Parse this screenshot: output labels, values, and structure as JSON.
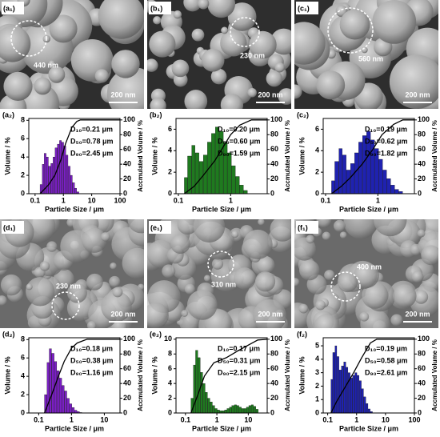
{
  "images": [
    {
      "label": "(a₁)",
      "size_label": "440 nm",
      "scale_label": "200 nm"
    },
    {
      "label": "(b₁)",
      "size_label": "230 nm",
      "scale_label": "200 nm"
    },
    {
      "label": "(c₁)",
      "size_label": "560 nm",
      "scale_label": "200 nm"
    },
    {
      "label": "(d₁)",
      "size_label": "230 nm",
      "scale_label": "200 nm"
    },
    {
      "label": "(e₁)",
      "size_label": "310 nm",
      "scale_label": "200 nm"
    },
    {
      "label": "(f₁)",
      "size_label": "400 nm",
      "scale_label": "200 nm"
    }
  ],
  "chart_data": [
    {
      "type": "histogram",
      "label": "(a₂)",
      "xlabel": "Particle Size / μm",
      "ylabel": "Volume / %",
      "y2label": "Accmulated Volume / %",
      "log_x": true,
      "color": "#7a1fc4",
      "xlim": [
        0.06,
        100
      ],
      "xticks": [
        0.1,
        1,
        10,
        100
      ],
      "ylim": [
        0,
        8.2
      ],
      "yticks": [
        0,
        2,
        4,
        6,
        8
      ],
      "y2lim": [
        0,
        102
      ],
      "y2ticks": [
        0,
        20,
        40,
        60,
        80,
        100
      ],
      "bins": [
        0.15,
        0.18,
        0.21,
        0.25,
        0.3,
        0.36,
        0.43,
        0.51,
        0.61,
        0.73,
        0.87,
        1.04,
        1.24,
        1.48,
        1.77,
        2.11,
        2.52,
        3.0,
        3.6
      ],
      "counts": [
        1.0,
        3.2,
        4.4,
        4.0,
        3.0,
        3.3,
        4.0,
        5.0,
        5.4,
        5.8,
        5.6,
        5.2,
        4.2,
        3.0,
        2.0,
        1.2,
        0.6,
        0.2
      ],
      "series": [
        {
          "axis": "y2",
          "color": "#000000",
          "x": [
            0.15,
            0.3,
            0.5,
            0.8,
            1.2,
            2,
            3,
            4,
            100
          ],
          "values": [
            0,
            12,
            25,
            45,
            68,
            90,
            98,
            100,
            100
          ]
        }
      ],
      "annotations": [
        "D₁₀=0.21 μm",
        "D₅₀=0.78 μm",
        "D₉₀=2.45 μm"
      ]
    },
    {
      "type": "histogram",
      "label": "(b₂)",
      "xlabel": "Particle Size / μm",
      "ylabel": "Volume / %",
      "y2label": "Accmulated Volume / %",
      "log_x": true,
      "color": "#1f7a1f",
      "xlim": [
        0.09,
        5
      ],
      "xticks": [
        0.1,
        1
      ],
      "ylim": [
        0,
        7
      ],
      "yticks": [
        0,
        2,
        4,
        6
      ],
      "y2lim": [
        0,
        102
      ],
      "y2ticks": [
        0,
        20,
        40,
        60,
        80,
        100
      ],
      "bins": [
        0.13,
        0.15,
        0.18,
        0.21,
        0.25,
        0.3,
        0.36,
        0.43,
        0.51,
        0.61,
        0.73,
        0.87,
        1.04,
        1.24,
        1.48,
        1.77,
        2.11
      ],
      "counts": [
        1.5,
        3.5,
        4.5,
        3.8,
        3.0,
        3.6,
        4.8,
        5.6,
        6.2,
        5.8,
        4.8,
        3.8,
        2.6,
        1.6,
        0.8,
        0.3
      ],
      "series": [
        {
          "axis": "y2",
          "color": "#000000",
          "x": [
            0.13,
            0.2,
            0.3,
            0.5,
            0.7,
            1,
            1.5,
            2.5,
            5
          ],
          "values": [
            0,
            10,
            25,
            45,
            62,
            80,
            93,
            100,
            100
          ]
        }
      ],
      "annotations": [
        "D₁₀=0.20 μm",
        "D₅₀=0.60 μm",
        "D₉₀=1.59 μm"
      ]
    },
    {
      "type": "histogram",
      "label": "(c₂)",
      "xlabel": "Particle Size / μm",
      "ylabel": "Volume / %",
      "y2label": "Accmulated Volume / %",
      "log_x": true,
      "color": "#1f22b0",
      "xlim": [
        0.09,
        5
      ],
      "xticks": [
        0.1,
        1
      ],
      "ylim": [
        0,
        7
      ],
      "yticks": [
        0,
        2,
        4,
        6
      ],
      "y2lim": [
        0,
        102
      ],
      "y2ticks": [
        0,
        20,
        40,
        60,
        80,
        100
      ],
      "bins": [
        0.13,
        0.15,
        0.18,
        0.21,
        0.25,
        0.3,
        0.36,
        0.43,
        0.51,
        0.61,
        0.73,
        0.87,
        1.04,
        1.24,
        1.48,
        1.77,
        2.11,
        2.52,
        3.0
      ],
      "counts": [
        1.2,
        3.0,
        4.2,
        3.6,
        2.2,
        2.8,
        3.8,
        4.8,
        5.4,
        5.8,
        5.0,
        4.2,
        3.2,
        2.2,
        1.4,
        0.8,
        0.4,
        0.2
      ],
      "series": [
        {
          "axis": "y2",
          "color": "#000000",
          "x": [
            0.13,
            0.2,
            0.3,
            0.5,
            0.8,
            1.2,
            2,
            3,
            5
          ],
          "values": [
            0,
            10,
            22,
            40,
            60,
            80,
            94,
            100,
            100
          ]
        }
      ],
      "annotations": [
        "D₁₀=0.19 μm",
        "D₅₀=0.62 μm",
        "D₉₀=1.82 μm"
      ]
    },
    {
      "type": "histogram",
      "label": "(d₂)",
      "xlabel": "Particle Size / μm",
      "ylabel": "Volume / %",
      "y2label": "Accmulated Volume / %",
      "log_x": true,
      "color": "#7a1fc4",
      "xlim": [
        0.05,
        30
      ],
      "xticks": [
        0.1,
        1,
        10
      ],
      "ylim": [
        0,
        8.2
      ],
      "yticks": [
        0,
        2,
        4,
        6,
        8
      ],
      "y2lim": [
        0,
        102
      ],
      "y2ticks": [
        0,
        20,
        40,
        60,
        80,
        100
      ],
      "bins": [
        0.15,
        0.18,
        0.21,
        0.25,
        0.3,
        0.36,
        0.43,
        0.51,
        0.61,
        0.73,
        0.87,
        1.04,
        1.24,
        1.48,
        1.77,
        2.11
      ],
      "counts": [
        2.0,
        5.5,
        7.0,
        6.5,
        5.6,
        4.6,
        3.8,
        3.0,
        2.4,
        1.6,
        1.0,
        0.6,
        0.3,
        0.15,
        0.05
      ],
      "series": [
        {
          "axis": "y2",
          "color": "#000000",
          "x": [
            0.15,
            0.25,
            0.4,
            0.6,
            1,
            1.5,
            3,
            30
          ],
          "values": [
            0,
            25,
            50,
            70,
            88,
            95,
            100,
            100
          ]
        }
      ],
      "annotations": [
        "D₁₀=0.18 μm",
        "D₅₀=0.38 μm",
        "D₉₀=1.16 μm"
      ]
    },
    {
      "type": "histogram",
      "label": "(e₂)",
      "xlabel": "Particle Size / μm",
      "ylabel": "Volume / %",
      "y2label": "Accmulated Volume / %",
      "log_x": true,
      "color": "#1f7a1f",
      "xlim": [
        0.05,
        40
      ],
      "xticks": [
        0.1,
        1,
        10
      ],
      "ylim": [
        0,
        10.2
      ],
      "yticks": [
        0,
        2,
        4,
        6,
        8,
        10
      ],
      "y2lim": [
        0,
        102
      ],
      "y2ticks": [
        0,
        20,
        40,
        60,
        80,
        100
      ],
      "bins": [
        0.15,
        0.18,
        0.21,
        0.25,
        0.3,
        0.36,
        0.43,
        0.51,
        0.61,
        0.73,
        0.87,
        1.04,
        1.24,
        1.48,
        1.77,
        2.11,
        2.52,
        3.0,
        3.6,
        4.3,
        5.1,
        6.1,
        7.3,
        8.7,
        10.4,
        12.4,
        14.8,
        17.7,
        21.1
      ],
      "counts": [
        2,
        6.5,
        8.5,
        7.5,
        5.5,
        4,
        2.8,
        2,
        1.5,
        1,
        0.6,
        0.4,
        0.3,
        0.3,
        0.4,
        0.6,
        0.8,
        1.0,
        1.1,
        1.0,
        0.8,
        0.6,
        0.6,
        0.8,
        1.0,
        1.1,
        0.9,
        0.5
      ],
      "series": [
        {
          "axis": "y2",
          "color": "#000000",
          "x": [
            0.15,
            0.25,
            0.4,
            0.8,
            2,
            5,
            10,
            20,
            40
          ],
          "values": [
            0,
            25,
            50,
            68,
            75,
            85,
            92,
            99,
            100
          ]
        }
      ],
      "annotations": [
        "D₁₀=0.17 μm",
        "D₅₀=0.31 μm",
        "D₉₀=2.15 μm"
      ]
    },
    {
      "type": "histogram",
      "label": "(f₂)",
      "xlabel": "Particle Size / μm",
      "ylabel": "Volume / %",
      "y2label": "Accmulated Volume / %",
      "log_x": true,
      "color": "#1f22b0",
      "xlim": [
        0.07,
        100
      ],
      "xticks": [
        0.1,
        1,
        10,
        100
      ],
      "ylim": [
        0,
        5.6
      ],
      "yticks": [
        0,
        1,
        2,
        3,
        4,
        5
      ],
      "y2lim": [
        0,
        102
      ],
      "y2ticks": [
        0,
        20,
        40,
        60,
        80,
        100
      ],
      "bins": [
        0.13,
        0.15,
        0.18,
        0.21,
        0.25,
        0.3,
        0.36,
        0.43,
        0.51,
        0.61,
        0.73,
        0.87,
        1.04,
        1.24,
        1.48,
        1.77,
        2.11,
        2.52,
        3.0,
        3.6
      ],
      "counts": [
        2.5,
        4.5,
        5.0,
        4.2,
        3.2,
        3.5,
        3.8,
        3.4,
        3.0,
        2.6,
        2.8,
        3.0,
        2.8,
        2.4,
        1.8,
        1.2,
        0.7,
        0.3,
        0.1
      ],
      "series": [
        {
          "axis": "y2",
          "color": "#000000",
          "x": [
            0.13,
            0.2,
            0.4,
            0.8,
            1.5,
            3,
            5,
            100
          ],
          "values": [
            0,
            15,
            35,
            55,
            75,
            95,
            100,
            100
          ]
        }
      ],
      "annotations": [
        "D₁₀=0.19 μm",
        "D₅₀=0.58 μm",
        "D₉₀=2.61 μm"
      ]
    }
  ]
}
